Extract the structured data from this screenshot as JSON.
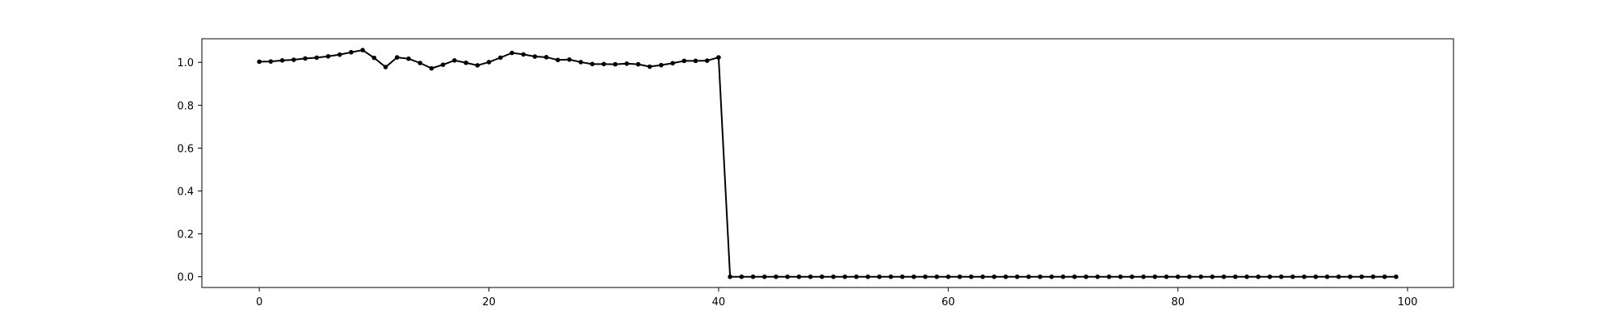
{
  "chart_data": {
    "type": "line",
    "title": "",
    "xlabel": "",
    "ylabel": "",
    "xlim": [
      -5,
      104
    ],
    "ylim": [
      -0.05,
      1.11
    ],
    "xticks": [
      0,
      20,
      40,
      60,
      80,
      100
    ],
    "yticks": [
      0.0,
      0.2,
      0.4,
      0.6,
      0.8,
      1.0
    ],
    "xtick_labels": [
      "0",
      "20",
      "40",
      "60",
      "80",
      "100"
    ],
    "ytick_labels": [
      "0.0",
      "0.2",
      "0.4",
      "0.6",
      "0.8",
      "1.0"
    ],
    "grid": false,
    "series": [
      {
        "color": "#000000",
        "marker": "circle",
        "x": [
          0,
          1,
          2,
          3,
          4,
          5,
          6,
          7,
          8,
          9,
          10,
          11,
          12,
          13,
          14,
          15,
          16,
          17,
          18,
          19,
          20,
          21,
          22,
          23,
          24,
          25,
          26,
          27,
          28,
          29,
          30,
          31,
          32,
          33,
          34,
          35,
          36,
          37,
          38,
          39,
          40,
          41,
          42,
          43,
          44,
          45,
          46,
          47,
          48,
          49,
          50,
          51,
          52,
          53,
          54,
          55,
          56,
          57,
          58,
          59,
          60,
          61,
          62,
          63,
          64,
          65,
          66,
          67,
          68,
          69,
          70,
          71,
          72,
          73,
          74,
          75,
          76,
          77,
          78,
          79,
          80,
          81,
          82,
          83,
          84,
          85,
          86,
          87,
          88,
          89,
          90,
          91,
          92,
          93,
          94,
          95,
          96,
          97,
          98,
          99
        ],
        "values": [
          1.003,
          1.004,
          1.009,
          1.012,
          1.018,
          1.022,
          1.028,
          1.036,
          1.047,
          1.057,
          1.021,
          0.978,
          1.023,
          1.017,
          0.997,
          0.972,
          0.989,
          1.009,
          0.998,
          0.986,
          1.001,
          1.022,
          1.044,
          1.037,
          1.027,
          1.024,
          1.011,
          1.013,
          1.001,
          0.992,
          0.992,
          0.991,
          0.994,
          0.991,
          0.98,
          0.987,
          0.996,
          1.007,
          1.007,
          1.008,
          1.023,
          0.0,
          0.0,
          0.0,
          0.0,
          0.0,
          0.0,
          0.0,
          0.0,
          0.0,
          0.0,
          0.0,
          0.0,
          0.0,
          0.0,
          0.0,
          0.0,
          0.0,
          0.0,
          0.0,
          0.0,
          0.0,
          0.0,
          0.0,
          0.0,
          0.0,
          0.0,
          0.0,
          0.0,
          0.0,
          0.0,
          0.0,
          0.0,
          0.0,
          0.0,
          0.0,
          0.0,
          0.0,
          0.0,
          0.0,
          0.0,
          0.0,
          0.0,
          0.0,
          0.0,
          0.0,
          0.0,
          0.0,
          0.0,
          0.0,
          0.0,
          0.0,
          0.0,
          0.0,
          0.0,
          0.0,
          0.0,
          0.0,
          0.0,
          0.0
        ]
      }
    ]
  }
}
